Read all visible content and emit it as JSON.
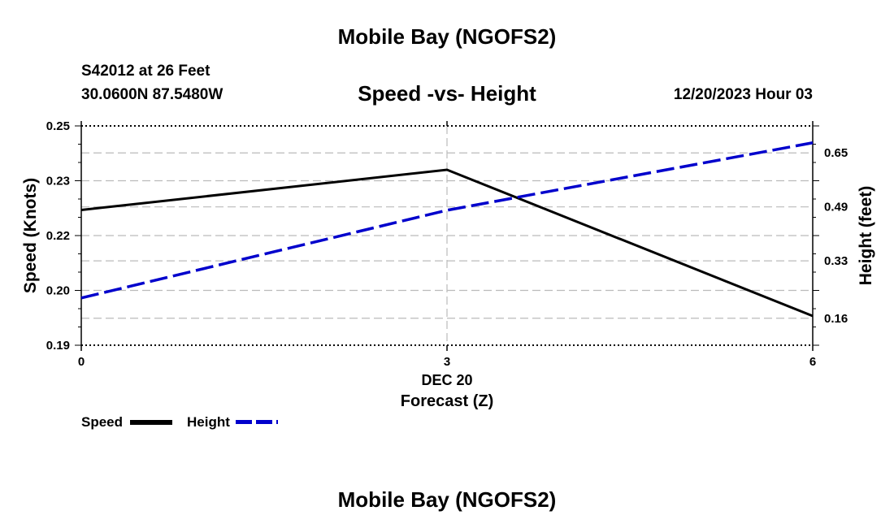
{
  "header": {
    "title": "Mobile Bay (NGOFS2)",
    "station": "S42012 at 26 Feet",
    "coordinates": "30.0600N  87.5480W",
    "date": "12/20/2023 Hour 03"
  },
  "footer": {
    "title": "Mobile Bay (NGOFS2)"
  },
  "colors": {
    "speed": "#000000",
    "height": "#0000cc",
    "grid": "#bbbbbb"
  },
  "chart_data": {
    "type": "line",
    "title": "Speed -vs- Height",
    "xlabel_top": "DEC 20",
    "xlabel": "Forecast (Z)",
    "ylabel": "Speed (Knots)",
    "y2label": "Height (feet)",
    "xlim": [
      0,
      6
    ],
    "ylim": [
      0.19,
      0.25
    ],
    "y2lim": [
      0.08,
      0.73
    ],
    "xticks": [
      {
        "value": 0,
        "label": "0"
      },
      {
        "value": 3,
        "label": "3"
      },
      {
        "value": 6,
        "label": "6"
      }
    ],
    "yticks": [
      {
        "value": 0.19,
        "label": "0.19"
      },
      {
        "value": 0.205,
        "label": "0.20"
      },
      {
        "value": 0.22,
        "label": "0.22"
      },
      {
        "value": 0.235,
        "label": "0.23"
      },
      {
        "value": 0.25,
        "label": "0.25"
      }
    ],
    "y2ticks": [
      {
        "value": 0.16,
        "label": "0.16"
      },
      {
        "value": 0.33,
        "label": "0.33"
      },
      {
        "value": 0.49,
        "label": "0.49"
      },
      {
        "value": 0.65,
        "label": "0.65"
      }
    ],
    "series": [
      {
        "name": "Speed",
        "axis": "left",
        "style": "solid",
        "x": [
          0,
          3,
          6
        ],
        "values": [
          0.227,
          0.238,
          0.198
        ]
      },
      {
        "name": "Height",
        "axis": "right",
        "style": "dashed",
        "x": [
          0,
          3,
          6
        ],
        "values": [
          0.22,
          0.48,
          0.68
        ]
      }
    ],
    "legend": [
      {
        "name": "Speed",
        "label": "Speed"
      },
      {
        "name": "Height",
        "label": "Height"
      }
    ]
  }
}
